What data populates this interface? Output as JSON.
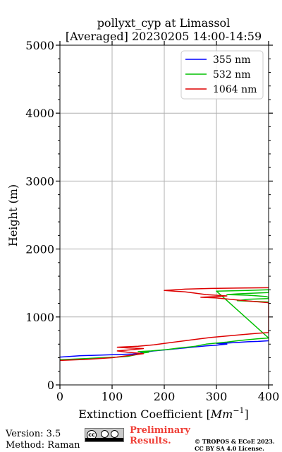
{
  "chart_data": {
    "type": "line",
    "title": "pollyxt_cyp at Limassol",
    "subtitle": "[Averaged] 20230205 14:00-14:59",
    "xlabel": "Extinction Coefficient [Mm^{-1}]",
    "xlabel_main": "Extinction Coefficient [",
    "xlabel_unit": "Mm",
    "xlabel_exp": "−1",
    "xlabel_end": "]",
    "ylabel": "Height (m)",
    "xlim": [
      0,
      400
    ],
    "ylim": [
      0,
      5000
    ],
    "xticks": [
      "0",
      "100",
      "200",
      "300",
      "400"
    ],
    "yticks": [
      "0",
      "1000",
      "2000",
      "3000",
      "4000",
      "5000"
    ],
    "grid": true,
    "legend_position": "top-right",
    "series": [
      {
        "name": "355 nm",
        "color": "#0000ff",
        "points": [
          [
            0,
            410
          ],
          [
            20,
            420
          ],
          [
            40,
            430
          ],
          [
            60,
            435
          ],
          [
            80,
            440
          ],
          [
            100,
            445
          ],
          [
            120,
            450
          ],
          [
            140,
            455
          ],
          [
            150,
            460
          ],
          [
            160,
            480
          ],
          [
            180,
            500
          ],
          [
            200,
            515
          ],
          [
            220,
            530
          ],
          [
            240,
            545
          ],
          [
            260,
            560
          ],
          [
            280,
            575
          ],
          [
            300,
            585
          ],
          [
            320,
            600
          ],
          [
            300,
            610
          ],
          [
            320,
            615
          ],
          [
            340,
            625
          ],
          [
            360,
            635
          ],
          [
            380,
            640
          ],
          [
            400,
            650
          ]
        ]
      },
      {
        "name": "532 nm",
        "color": "#00c000",
        "points": [
          [
            0,
            370
          ],
          [
            40,
            385
          ],
          [
            80,
            400
          ],
          [
            110,
            410
          ],
          [
            130,
            420
          ],
          [
            150,
            450
          ],
          [
            160,
            470
          ],
          [
            170,
            480
          ],
          [
            150,
            490
          ],
          [
            175,
            500
          ],
          [
            190,
            510
          ],
          [
            205,
            520
          ],
          [
            215,
            530
          ],
          [
            230,
            545
          ],
          [
            250,
            560
          ],
          [
            260,
            570
          ],
          [
            270,
            585
          ],
          [
            280,
            600
          ],
          [
            300,
            615
          ],
          [
            320,
            630
          ],
          [
            340,
            650
          ],
          [
            360,
            665
          ],
          [
            380,
            680
          ],
          [
            400,
            690
          ],
          [
            300,
            1380
          ],
          [
            330,
            1385
          ],
          [
            360,
            1390
          ],
          [
            380,
            1395
          ],
          [
            400,
            1400
          ],
          [
            400,
            1360
          ],
          [
            370,
            1350
          ],
          [
            340,
            1340
          ],
          [
            320,
            1330
          ],
          [
            360,
            1320
          ],
          [
            380,
            1310
          ],
          [
            395,
            1300
          ],
          [
            400,
            1290
          ],
          [
            400,
            1270
          ],
          [
            360,
            1260
          ],
          [
            340,
            1240
          ],
          [
            400,
            1220
          ]
        ]
      },
      {
        "name": "1064 nm",
        "color": "#dd0000",
        "points": [
          [
            0,
            360
          ],
          [
            50,
            375
          ],
          [
            100,
            400
          ],
          [
            130,
            430
          ],
          [
            150,
            450
          ],
          [
            160,
            460
          ],
          [
            130,
            480
          ],
          [
            110,
            500
          ],
          [
            140,
            520
          ],
          [
            160,
            535
          ],
          [
            130,
            545
          ],
          [
            110,
            555
          ],
          [
            150,
            570
          ],
          [
            180,
            590
          ],
          [
            200,
            610
          ],
          [
            230,
            640
          ],
          [
            260,
            670
          ],
          [
            290,
            700
          ],
          [
            320,
            720
          ],
          [
            350,
            740
          ],
          [
            380,
            760
          ],
          [
            400,
            770
          ],
          [
            400,
            1210
          ],
          [
            370,
            1230
          ],
          [
            340,
            1250
          ],
          [
            300,
            1280
          ],
          [
            270,
            1290
          ],
          [
            300,
            1300
          ],
          [
            320,
            1310
          ],
          [
            280,
            1330
          ],
          [
            260,
            1350
          ],
          [
            240,
            1370
          ],
          [
            200,
            1390
          ],
          [
            240,
            1410
          ],
          [
            290,
            1420
          ],
          [
            340,
            1425
          ],
          [
            400,
            1430
          ]
        ]
      }
    ]
  },
  "footer": {
    "version": "Version: 3.5",
    "method": "Method: Raman",
    "license_badge_icons": [
      "cc-icon",
      "by-icon",
      "sa-icon"
    ],
    "license_badge_text": "BY SA",
    "preliminary_line1": "Preliminary",
    "preliminary_line2": "Results.",
    "preliminary_color": "#ef3e36",
    "copyright_line1": "© TROPOS & ECoE 2023.",
    "copyright_line2": "CC BY SA 4.0 License."
  }
}
